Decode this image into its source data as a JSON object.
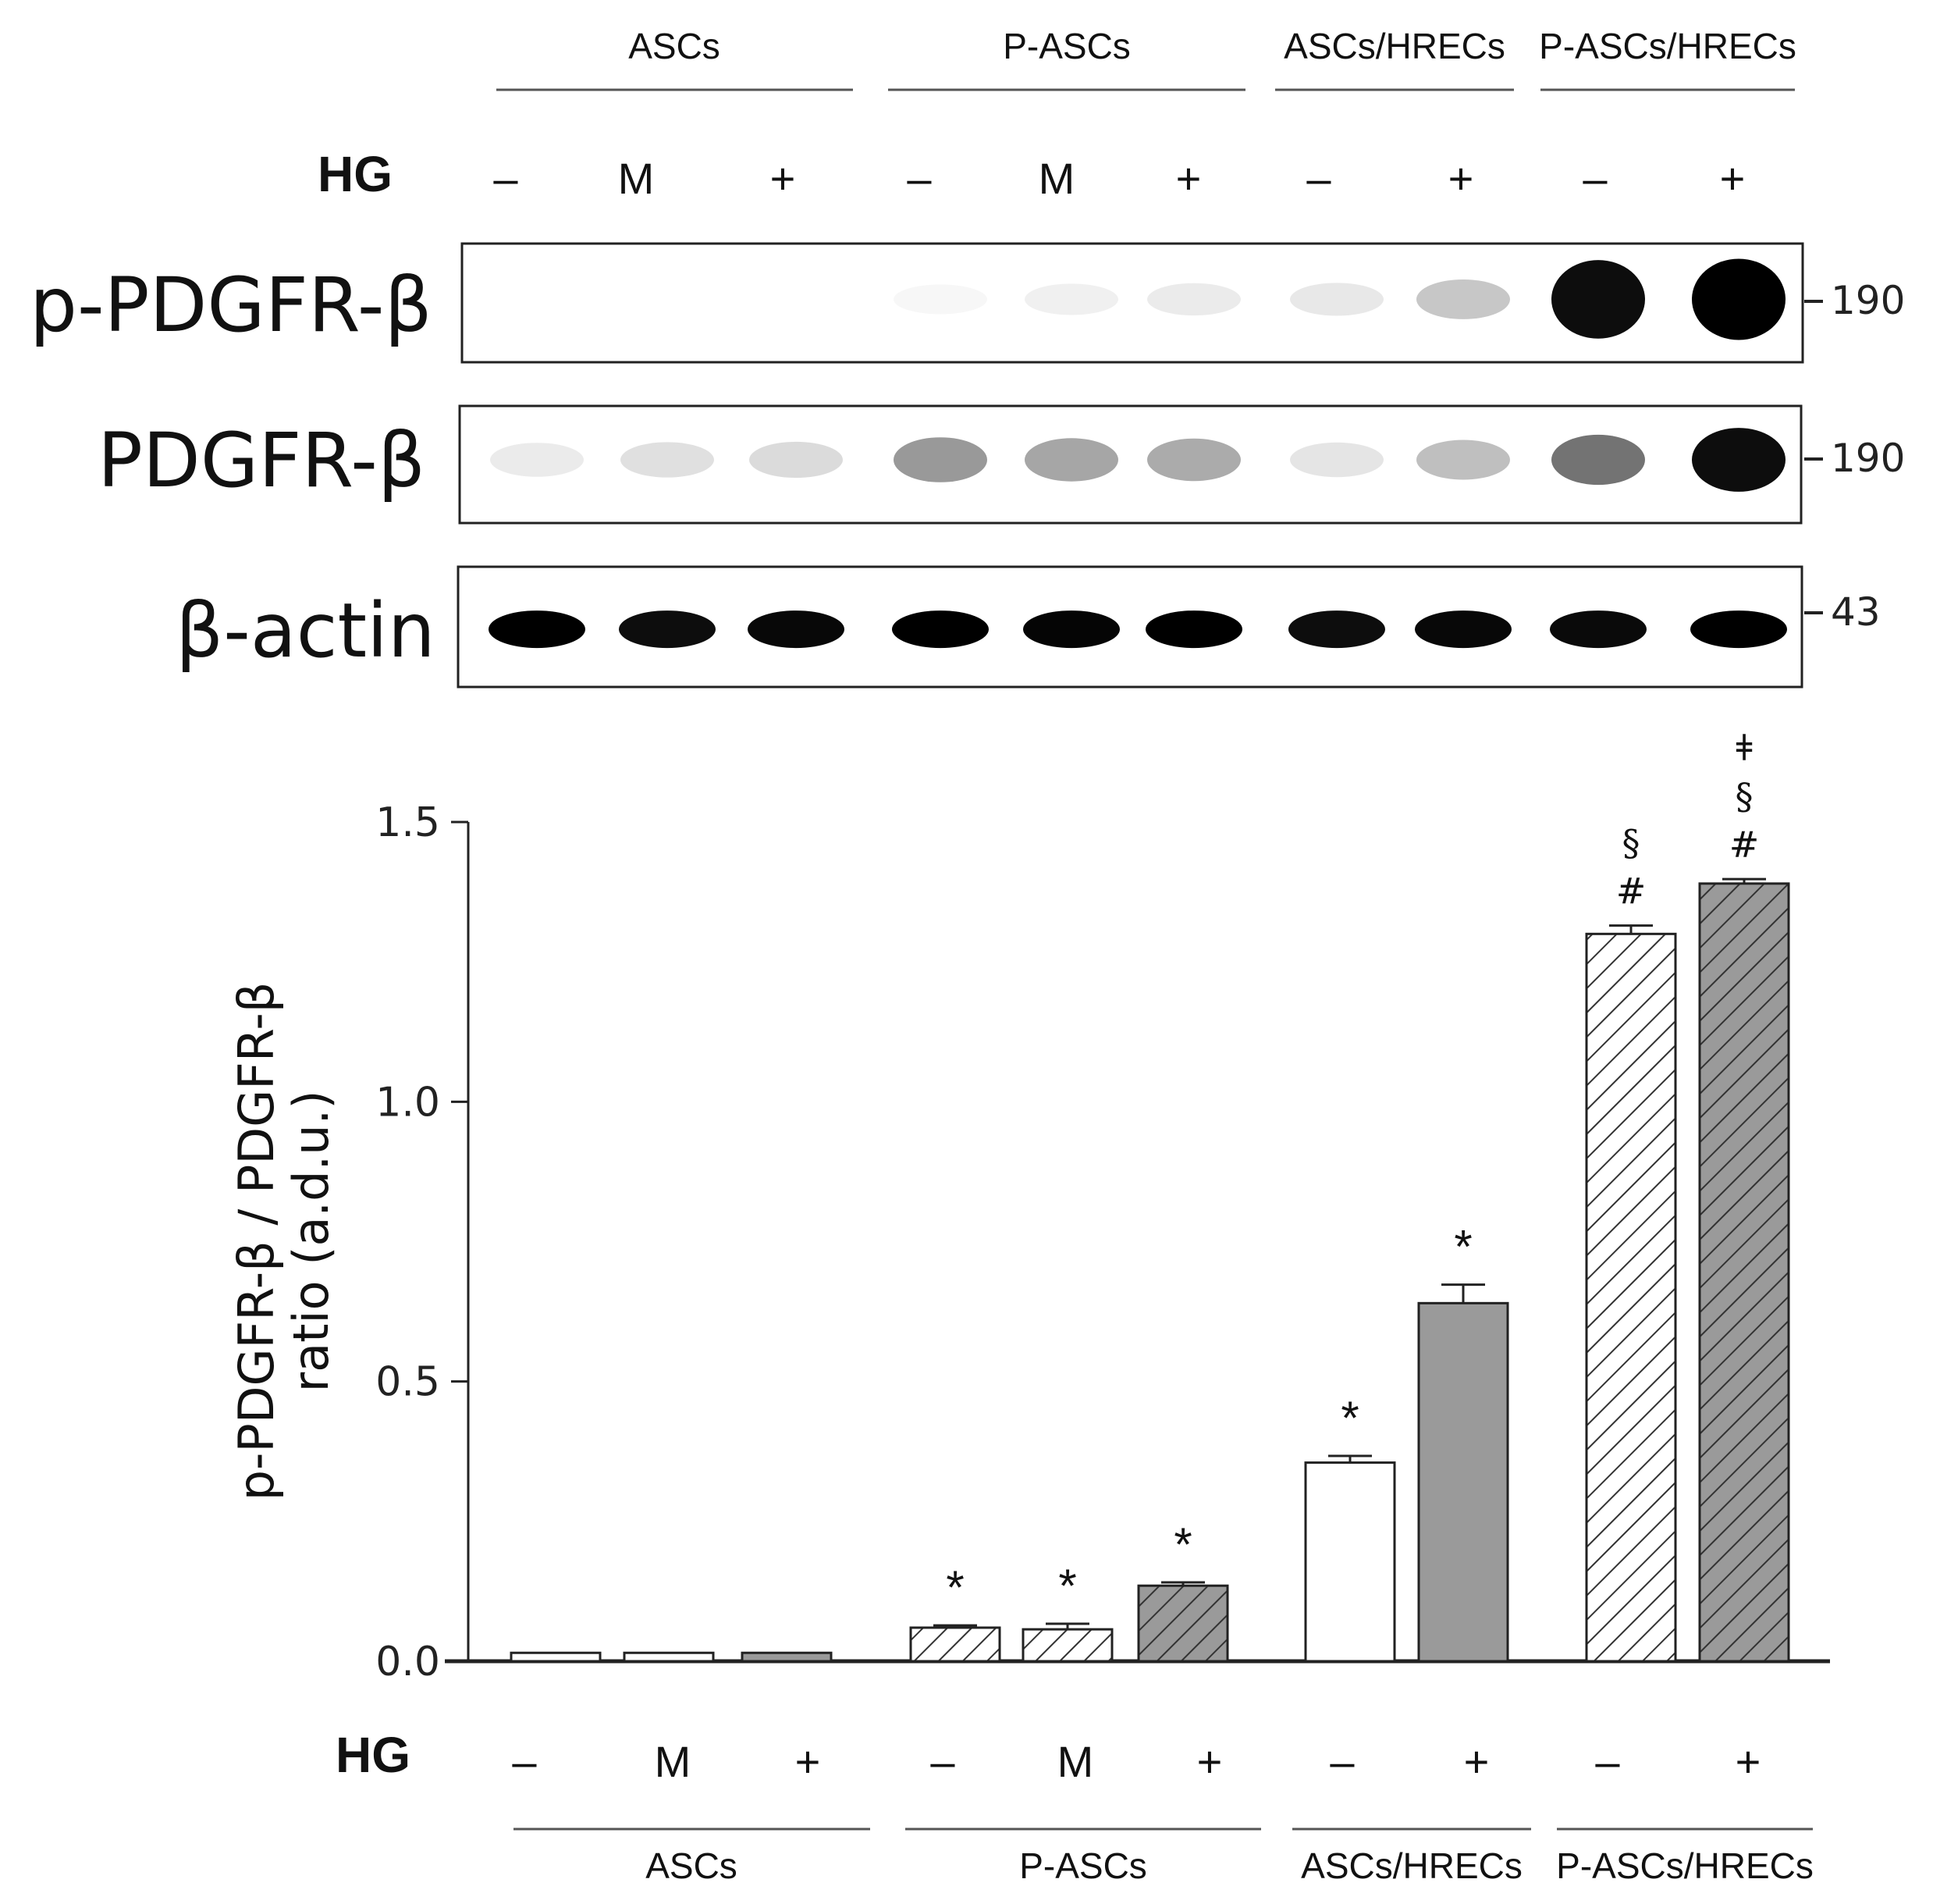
{
  "blot": {
    "top_groups": [
      "ASCs",
      "P-ASCs",
      "ASCs/HRECs",
      "P-ASCs/HRECs"
    ],
    "hg_label": "HG",
    "hg_values": [
      "–",
      "M",
      "+",
      "–",
      "M",
      "+",
      "–",
      "+",
      "–",
      "+"
    ],
    "rows": [
      {
        "label": "p-PDGFR-β",
        "mw": "190",
        "intensities": [
          0.0,
          0.0,
          0.0,
          0.03,
          0.06,
          0.08,
          0.09,
          0.22,
          0.95,
          1.0
        ]
      },
      {
        "label": "PDGFR-β",
        "mw": "190",
        "intensities": [
          0.08,
          0.12,
          0.14,
          0.4,
          0.35,
          0.33,
          0.1,
          0.25,
          0.55,
          0.95
        ]
      },
      {
        "label": "β-actin",
        "mw": "43",
        "intensities": [
          1.0,
          0.95,
          0.97,
          1.0,
          0.98,
          1.0,
          0.95,
          0.97,
          0.96,
          1.0
        ]
      }
    ],
    "colors": {
      "band": "#000000",
      "frame": "#222222"
    }
  },
  "chart_data": {
    "type": "bar",
    "categories": [
      "ASCs –",
      "ASCs M",
      "ASCs +",
      "P-ASCs –",
      "P-ASCs M",
      "P-ASCs +",
      "ASCs/HRECs –",
      "ASCs/HRECs +",
      "P-ASCs/HRECs –",
      "P-ASCs/HRECs +"
    ],
    "values": [
      0.015,
      0.015,
      0.015,
      0.06,
      0.057,
      0.135,
      0.355,
      0.64,
      1.3,
      1.39
    ],
    "errors": [
      0.0,
      0.0,
      0.0,
      0.004,
      0.01,
      0.006,
      0.012,
      0.033,
      0.015,
      0.008
    ],
    "fills": [
      "white",
      "white",
      "gray",
      "hatch-white",
      "hatch-white",
      "hatch-gray",
      "white",
      "gray",
      "hatch-white",
      "hatch-gray"
    ],
    "annotations": [
      [],
      [],
      [],
      [
        "*"
      ],
      [
        "*"
      ],
      [
        "*"
      ],
      [
        "*"
      ],
      [
        "*"
      ],
      [
        "#",
        "§"
      ],
      [
        "#",
        "§",
        "ǂ"
      ]
    ],
    "ylabel_lines": [
      "p-PDGFR-β / PDGFR-β",
      "ratio (a.d.u.)"
    ],
    "yticks": [
      "0.0",
      "0.5",
      "1.0",
      "1.5"
    ],
    "ylim": [
      0,
      1.5
    ],
    "x_hg_label": "HG",
    "x_hg_values": [
      "–",
      "M",
      "+",
      "–",
      "M",
      "+",
      "–",
      "+",
      "–",
      "+"
    ],
    "x_groups": [
      "ASCs",
      "P-ASCs",
      "ASCs/HRECs",
      "P-ASCs/HRECs"
    ],
    "colors": {
      "gray": "#9a9a9a",
      "hatch_gray_bg": "#9a9a9a",
      "hatch_white_bg": "#ffffff",
      "outline": "#222222"
    }
  }
}
